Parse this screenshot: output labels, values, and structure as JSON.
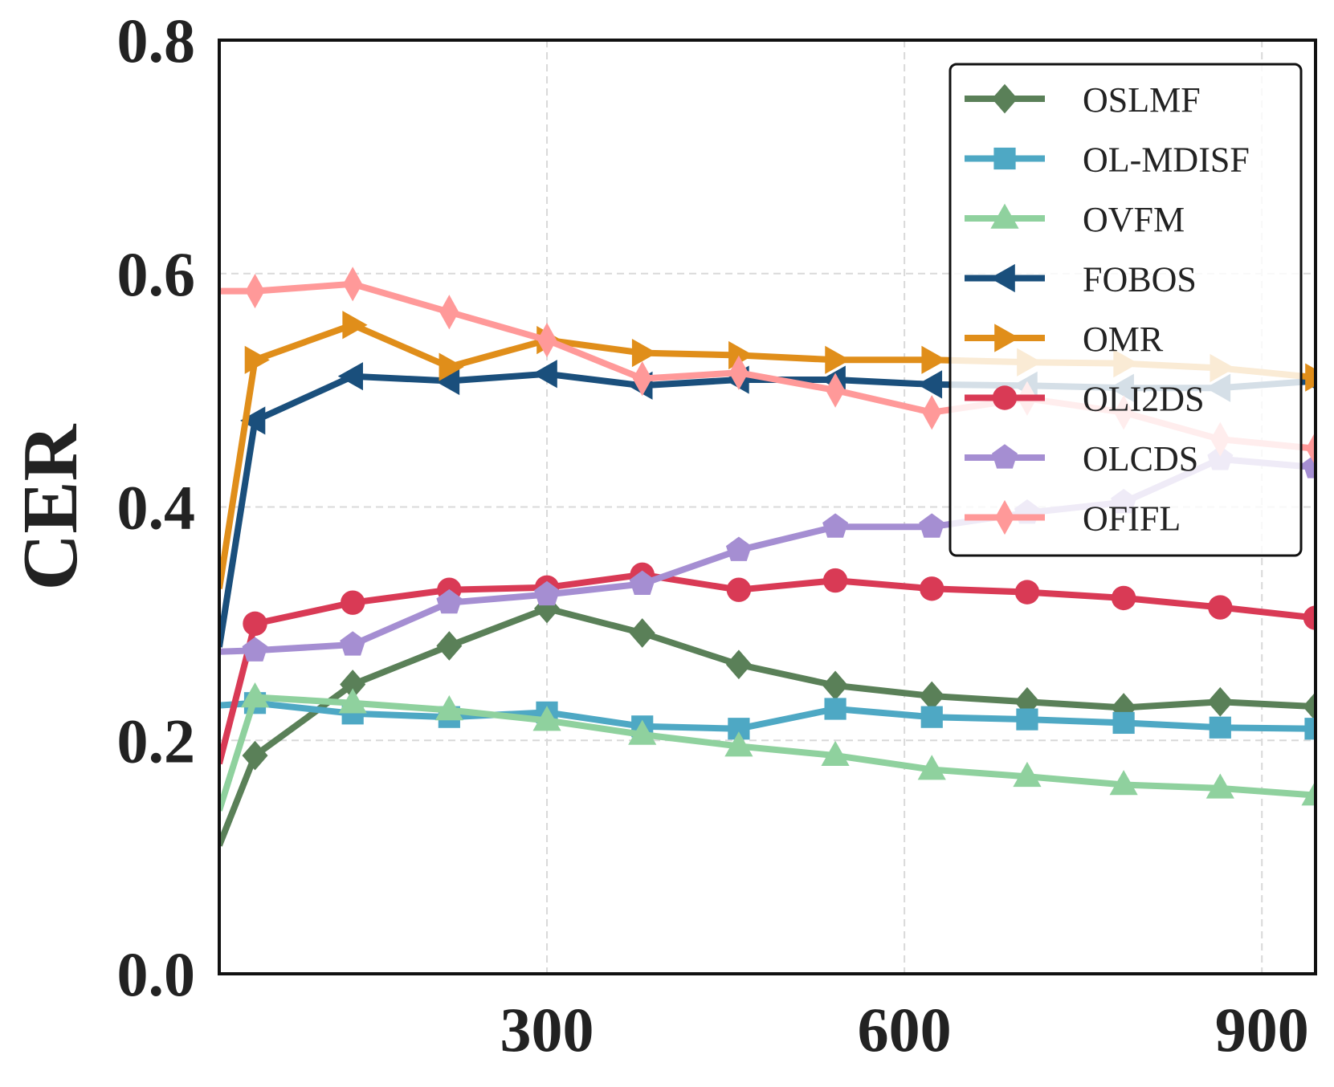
{
  "chart_data": {
    "type": "line",
    "title": "",
    "xlabel": "",
    "ylabel": "CER",
    "xlim": [
      25,
      945
    ],
    "ylim": [
      0.0,
      0.8
    ],
    "xticks": [
      300,
      600,
      900
    ],
    "yticks": [
      0.0,
      0.2,
      0.4,
      0.6,
      0.8
    ],
    "xtick_labels": [
      "300",
      "600",
      "900"
    ],
    "ytick_labels": [
      "0.0",
      "0.2",
      "0.4",
      "0.6",
      "0.8"
    ],
    "grid": true,
    "legend_position": "top-right",
    "x": [
      25,
      55,
      137,
      218,
      300,
      380,
      461,
      542,
      623,
      703,
      784,
      865,
      945
    ],
    "series": [
      {
        "name": "OSLMF",
        "color": "#5a8058",
        "marker": "diamond",
        "values": [
          0.11,
          0.187,
          0.248,
          0.281,
          0.313,
          0.292,
          0.265,
          0.247,
          0.238,
          0.233,
          0.228,
          0.233,
          0.229
        ]
      },
      {
        "name": "OL-MDISF",
        "color": "#4ea8c4",
        "marker": "square",
        "values": [
          0.23,
          0.232,
          0.223,
          0.22,
          0.224,
          0.212,
          0.21,
          0.227,
          0.22,
          0.218,
          0.215,
          0.211,
          0.21
        ]
      },
      {
        "name": "OVFM",
        "color": "#8fd19e",
        "marker": "triangle-up",
        "values": [
          0.14,
          0.237,
          0.232,
          0.226,
          0.217,
          0.205,
          0.195,
          0.187,
          0.175,
          0.169,
          0.162,
          0.159,
          0.153
        ]
      },
      {
        "name": "FOBOS",
        "color": "#1a4f7c",
        "marker": "triangle-left",
        "values": [
          0.28,
          0.474,
          0.512,
          0.508,
          0.514,
          0.504,
          0.509,
          0.509,
          0.505,
          0.504,
          0.502,
          0.502,
          0.508
        ]
      },
      {
        "name": "OMR",
        "color": "#e08e1a",
        "marker": "triangle-right",
        "values": [
          0.33,
          0.526,
          0.556,
          0.52,
          0.543,
          0.532,
          0.53,
          0.526,
          0.526,
          0.524,
          0.523,
          0.519,
          0.511
        ]
      },
      {
        "name": "OLI2DS",
        "color": "#d93a55",
        "marker": "circle",
        "values": [
          0.18,
          0.3,
          0.318,
          0.329,
          0.331,
          0.342,
          0.329,
          0.337,
          0.33,
          0.327,
          0.322,
          0.314,
          0.305
        ]
      },
      {
        "name": "OLCDS",
        "color": "#a58ed2",
        "marker": "pentagon",
        "values": [
          0.276,
          0.277,
          0.282,
          0.318,
          0.325,
          0.334,
          0.363,
          0.383,
          0.383,
          0.395,
          0.404,
          0.441,
          0.434
        ]
      },
      {
        "name": "OFIFL",
        "color": "#ff9999",
        "marker": "thin-diamond",
        "values": [
          0.585,
          0.585,
          0.591,
          0.567,
          0.543,
          0.51,
          0.515,
          0.5,
          0.481,
          0.493,
          0.481,
          0.458,
          0.45
        ]
      }
    ]
  }
}
